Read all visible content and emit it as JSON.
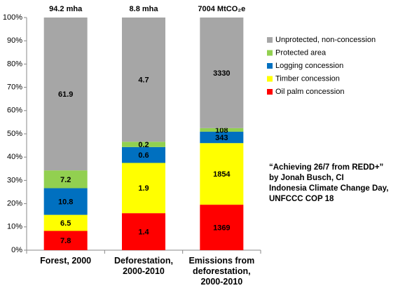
{
  "chart_data": {
    "type": "bar",
    "stacking": "percent",
    "column_headers": [
      "94.2 mha",
      "8.8 mha",
      "7004 MtCO₂e"
    ],
    "categories": [
      "Forest, 2000",
      "Deforestation, 2000-2010",
      "Emissions from deforestation, 2000-2010"
    ],
    "series": [
      {
        "name": "Oil palm concession",
        "color": "#ff0000",
        "values": [
          7.8,
          1.4,
          1369
        ]
      },
      {
        "name": "Timber concession",
        "color": "#ffff00",
        "values": [
          6.5,
          1.9,
          1854
        ]
      },
      {
        "name": "Logging concession",
        "color": "#0070c0",
        "values": [
          10.8,
          0.6,
          343
        ]
      },
      {
        "name": "Protected area",
        "color": "#92d050",
        "values": [
          7.2,
          0.2,
          108
        ]
      },
      {
        "name": "Unprotected, non-concession",
        "color": "#a6a6a6",
        "values": [
          61.9,
          4.7,
          3330
        ]
      }
    ],
    "ylim": [
      0,
      100
    ],
    "yticks": [
      {
        "value": 0,
        "label": "0%"
      },
      {
        "value": 10,
        "label": "10%"
      },
      {
        "value": 20,
        "label": "20%"
      },
      {
        "value": 30,
        "label": "30%"
      },
      {
        "value": 40,
        "label": "40%"
      },
      {
        "value": 50,
        "label": "50%"
      },
      {
        "value": 60,
        "label": "60%"
      },
      {
        "value": 70,
        "label": "70%"
      },
      {
        "value": 80,
        "label": "80%"
      },
      {
        "value": 90,
        "label": "90%"
      },
      {
        "value": 100,
        "label": "100%"
      }
    ],
    "legend": "right",
    "annotation": [
      "“Achieving 26/7 from REDD+”",
      "by Jonah Busch, CI",
      "Indonesia Climate Change Day,",
      "UNFCCC COP 18"
    ]
  }
}
